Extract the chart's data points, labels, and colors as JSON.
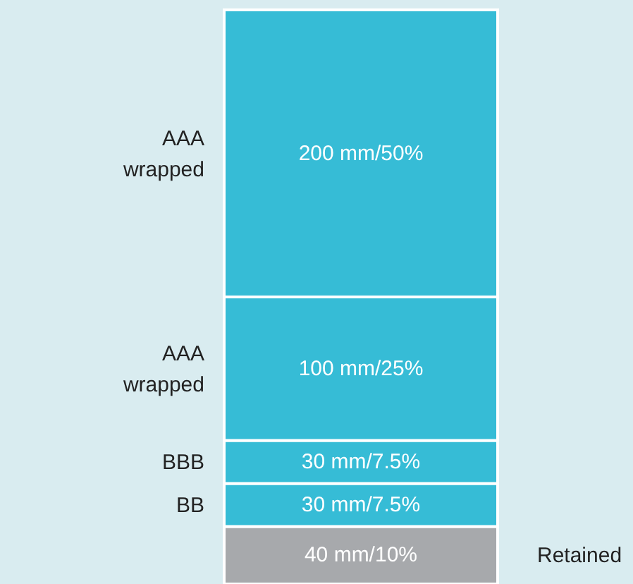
{
  "chart_data": {
    "type": "bar",
    "stacked": true,
    "categories": [
      null
    ],
    "series": [
      {
        "name": "Retained",
        "color": "#a7a9ac",
        "values": [
          40
        ],
        "value_labels": [
          "40 mm/10%"
        ]
      },
      {
        "name": "BB",
        "color": "#36bcd6",
        "values": [
          30
        ],
        "value_labels": [
          "30 mm/7.5%"
        ]
      },
      {
        "name": "BBB",
        "color": "#36bcd6",
        "values": [
          30
        ],
        "value_labels": [
          "30 mm/7.5%"
        ]
      },
      {
        "name": "AAA wrapped",
        "color": "#36bcd6",
        "values": [
          100
        ],
        "value_labels": [
          "100 mm/25%"
        ]
      },
      {
        "name": "AAA wrapped",
        "color": "#36bcd6",
        "values": [
          200
        ],
        "value_labels": [
          "200 mm/50%"
        ]
      }
    ]
  }
}
